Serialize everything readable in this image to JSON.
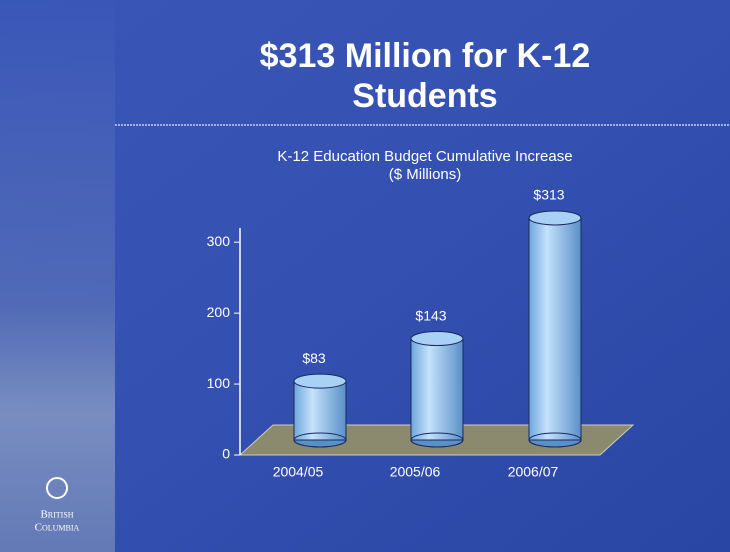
{
  "slide": {
    "title": [
      "$313 Million for K-12",
      "Students"
    ],
    "logo": [
      "British",
      "Columbia"
    ]
  },
  "chart_data": {
    "type": "bar",
    "title": "K-12 Education Budget Cumulative Increase",
    "subtitle": "($ Millions)",
    "categories": [
      "2004/05",
      "2005/06",
      "2006/07"
    ],
    "values": [
      83,
      143,
      313
    ],
    "value_labels": [
      "$83",
      "$143",
      "$313"
    ],
    "color": "#a9d0f5",
    "ylim": [
      0,
      320
    ],
    "yticks": [
      0,
      100,
      200,
      300
    ]
  }
}
